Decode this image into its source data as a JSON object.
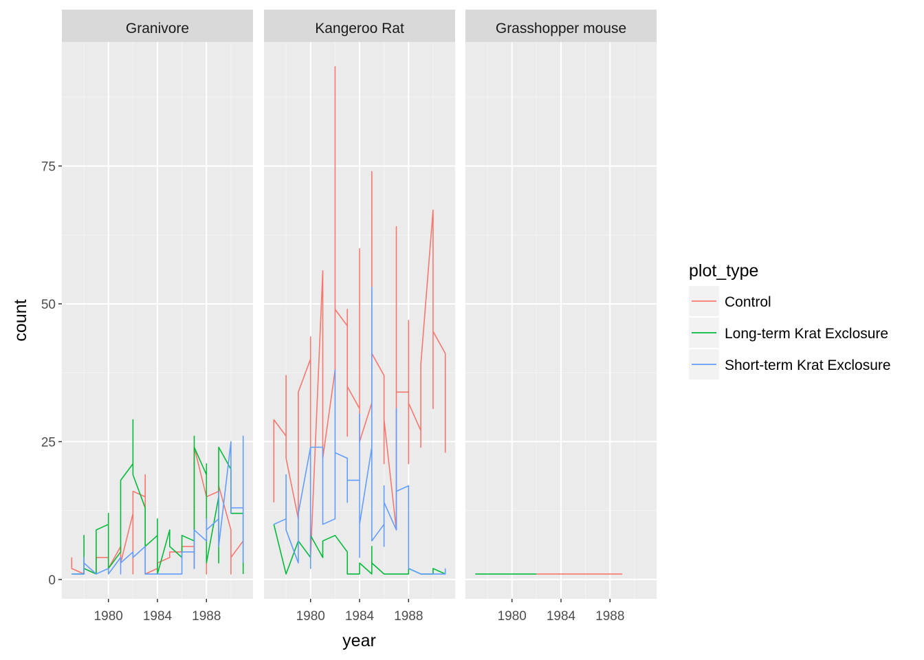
{
  "chart_data": {
    "type": "line",
    "facets": [
      "Granivore",
      "Kangeroo Rat",
      "Grasshopper mouse"
    ],
    "xlabel": "year",
    "ylabel": "count",
    "xlim": [
      1976.2,
      1991.8
    ],
    "ylim": [
      -3.5,
      97.5
    ],
    "x_ticks": [
      1980,
      1984,
      1988
    ],
    "y_ticks": [
      0,
      25,
      50,
      75
    ],
    "grid": true,
    "legend": {
      "title": "plot_type",
      "position": "right",
      "entries": [
        {
          "label": "Control",
          "color": "#F8766D"
        },
        {
          "label": "Long-term Krat Exclosure",
          "color": "#00BA38"
        },
        {
          "label": "Short-term Krat Exclosure",
          "color": "#619CFF"
        }
      ]
    },
    "panels": [
      {
        "facet": "Granivore",
        "series": [
          {
            "name": "Control",
            "color": "#F8766D",
            "points": [
              [
                1977,
                4
              ],
              [
                1977,
                2
              ],
              [
                1978,
                1
              ],
              [
                1978,
                2
              ],
              [
                1979,
                1
              ],
              [
                1979,
                4
              ],
              [
                1980,
                4
              ],
              [
                1980,
                2
              ],
              [
                1981,
                6
              ],
              [
                1981,
                3
              ],
              [
                1982,
                12
              ],
              [
                1982,
                1
              ],
              [
                1982,
                16
              ],
              [
                1983,
                15
              ],
              [
                1983,
                19
              ],
              [
                1983,
                1
              ],
              [
                1984,
                2
              ],
              [
                1984,
                3
              ],
              [
                1985,
                4
              ],
              [
                1985,
                5
              ],
              [
                1986,
                5
              ],
              [
                1986,
                6
              ],
              [
                1987,
                6
              ],
              [
                1987,
                2
              ],
              [
                1987,
                24
              ],
              [
                1988,
                15
              ],
              [
                1988,
                1
              ],
              [
                1988,
                15
              ],
              [
                1989,
                16
              ],
              [
                1989,
                17
              ],
              [
                1990,
                9
              ],
              [
                1990,
                1
              ],
              [
                1990,
                4
              ],
              [
                1991,
                7
              ]
            ]
          },
          {
            "name": "Long-term Krat Exclosure",
            "color": "#00BA38",
            "points": [
              [
                1977,
                1
              ],
              [
                1978,
                1
              ],
              [
                1978,
                8
              ],
              [
                1978,
                2
              ],
              [
                1979,
                1
              ],
              [
                1979,
                9
              ],
              [
                1980,
                10
              ],
              [
                1980,
                12
              ],
              [
                1980,
                2
              ],
              [
                1981,
                5
              ],
              [
                1981,
                18
              ],
              [
                1982,
                21
              ],
              [
                1982,
                29
              ],
              [
                1982,
                19
              ],
              [
                1983,
                13
              ],
              [
                1983,
                11
              ],
              [
                1983,
                6
              ],
              [
                1984,
                8
              ],
              [
                1984,
                11
              ],
              [
                1984,
                1
              ],
              [
                1985,
                9
              ],
              [
                1985,
                6
              ],
              [
                1986,
                4
              ],
              [
                1986,
                8
              ],
              [
                1987,
                7
              ],
              [
                1987,
                26
              ],
              [
                1987,
                24
              ],
              [
                1988,
                19
              ],
              [
                1988,
                21
              ],
              [
                1988,
                3
              ],
              [
                1989,
                15
              ],
              [
                1989,
                3
              ],
              [
                1989,
                24
              ],
              [
                1990,
                20
              ],
              [
                1990,
                12
              ],
              [
                1991,
                12
              ],
              [
                1991,
                1
              ]
            ]
          },
          {
            "name": "Short-term Krat Exclosure",
            "color": "#619CFF",
            "points": [
              [
                1977,
                1
              ],
              [
                1978,
                1
              ],
              [
                1978,
                4
              ],
              [
                1978,
                3
              ],
              [
                1979,
                1
              ],
              [
                1980,
                2
              ],
              [
                1980,
                1
              ],
              [
                1981,
                4
              ],
              [
                1981,
                1
              ],
              [
                1981,
                3
              ],
              [
                1982,
                5
              ],
              [
                1982,
                4
              ],
              [
                1983,
                6
              ],
              [
                1983,
                1
              ],
              [
                1984,
                1
              ],
              [
                1985,
                1
              ],
              [
                1986,
                1
              ],
              [
                1986,
                5
              ],
              [
                1987,
                5
              ],
              [
                1987,
                2
              ],
              [
                1987,
                9
              ],
              [
                1988,
                7
              ],
              [
                1988,
                11
              ],
              [
                1988,
                9
              ],
              [
                1989,
                11
              ],
              [
                1989,
                7
              ],
              [
                1989,
                16
              ],
              [
                1989,
                6
              ],
              [
                1990,
                25
              ],
              [
                1990,
                12
              ],
              [
                1990,
                13
              ],
              [
                1991,
                13
              ],
              [
                1991,
                26
              ],
              [
                1991,
                3
              ]
            ]
          }
        ]
      },
      {
        "facet": "Kangeroo Rat",
        "series": [
          {
            "name": "Control",
            "color": "#F8766D",
            "points": [
              [
                1977,
                14
              ],
              [
                1977,
                29
              ],
              [
                1978,
                26
              ],
              [
                1978,
                37
              ],
              [
                1978,
                22
              ],
              [
                1979,
                11
              ],
              [
                1979,
                34
              ],
              [
                1980,
                40
              ],
              [
                1980,
                44
              ],
              [
                1980,
                4
              ],
              [
                1981,
                56
              ],
              [
                1981,
                22
              ],
              [
                1982,
                38
              ],
              [
                1982,
                93
              ],
              [
                1982,
                49
              ],
              [
                1983,
                46
              ],
              [
                1983,
                49
              ],
              [
                1983,
                26
              ],
              [
                1983,
                35
              ],
              [
                1984,
                31
              ],
              [
                1984,
                60
              ],
              [
                1984,
                25
              ],
              [
                1985,
                32
              ],
              [
                1985,
                74
              ],
              [
                1985,
                41
              ],
              [
                1986,
                37
              ],
              [
                1986,
                21
              ],
              [
                1986,
                29
              ],
              [
                1987,
                9
              ],
              [
                1987,
                64
              ],
              [
                1987,
                34
              ],
              [
                1988,
                34
              ],
              [
                1988,
                47
              ],
              [
                1988,
                21
              ],
              [
                1988,
                32
              ],
              [
                1989,
                27
              ],
              [
                1989,
                24
              ],
              [
                1989,
                39
              ],
              [
                1990,
                67
              ],
              [
                1990,
                31
              ],
              [
                1990,
                45
              ],
              [
                1991,
                41
              ],
              [
                1991,
                23
              ]
            ]
          },
          {
            "name": "Long-term Krat Exclosure",
            "color": "#00BA38",
            "points": [
              [
                1977,
                10
              ],
              [
                1978,
                1
              ],
              [
                1979,
                7
              ],
              [
                1980,
                4
              ],
              [
                1980,
                8
              ],
              [
                1981,
                4
              ],
              [
                1981,
                7
              ],
              [
                1982,
                8
              ],
              [
                1983,
                5
              ],
              [
                1983,
                1
              ],
              [
                1984,
                1
              ],
              [
                1984,
                3
              ],
              [
                1985,
                1
              ],
              [
                1985,
                6
              ],
              [
                1985,
                3
              ],
              [
                1986,
                1
              ],
              [
                1987,
                1
              ],
              [
                1988,
                1
              ],
              [
                1988,
                2
              ],
              [
                1989,
                1
              ],
              [
                1990,
                1
              ],
              [
                1990,
                2
              ],
              [
                1991,
                1
              ]
            ]
          },
          {
            "name": "Short-term Krat Exclosure",
            "color": "#619CFF",
            "points": [
              [
                1977,
                10
              ],
              [
                1978,
                11
              ],
              [
                1978,
                19
              ],
              [
                1978,
                9
              ],
              [
                1979,
                3
              ],
              [
                1979,
                12
              ],
              [
                1980,
                24
              ],
              [
                1980,
                2
              ],
              [
                1980,
                24
              ],
              [
                1981,
                24
              ],
              [
                1981,
                10
              ],
              [
                1982,
                11
              ],
              [
                1982,
                38
              ],
              [
                1982,
                23
              ],
              [
                1983,
                22
              ],
              [
                1983,
                14
              ],
              [
                1983,
                18
              ],
              [
                1984,
                18
              ],
              [
                1984,
                30
              ],
              [
                1984,
                4
              ],
              [
                1984,
                10
              ],
              [
                1985,
                24
              ],
              [
                1985,
                53
              ],
              [
                1985,
                7
              ],
              [
                1986,
                10
              ],
              [
                1986,
                17
              ],
              [
                1986,
                6
              ],
              [
                1986,
                14
              ],
              [
                1987,
                9
              ],
              [
                1987,
                31
              ],
              [
                1987,
                16
              ],
              [
                1988,
                17
              ],
              [
                1988,
                2
              ],
              [
                1989,
                1
              ],
              [
                1990,
                1
              ],
              [
                1991,
                1
              ],
              [
                1991,
                2
              ]
            ]
          }
        ]
      },
      {
        "facet": "Grasshopper mouse",
        "series": [
          {
            "name": "Long-term Krat Exclosure",
            "color": "#00BA38",
            "points": [
              [
                1977,
                1
              ],
              [
                1982,
                1
              ]
            ]
          },
          {
            "name": "Control",
            "color": "#F8766D",
            "points": [
              [
                1982,
                1
              ],
              [
                1989,
                1
              ]
            ]
          }
        ]
      }
    ]
  }
}
